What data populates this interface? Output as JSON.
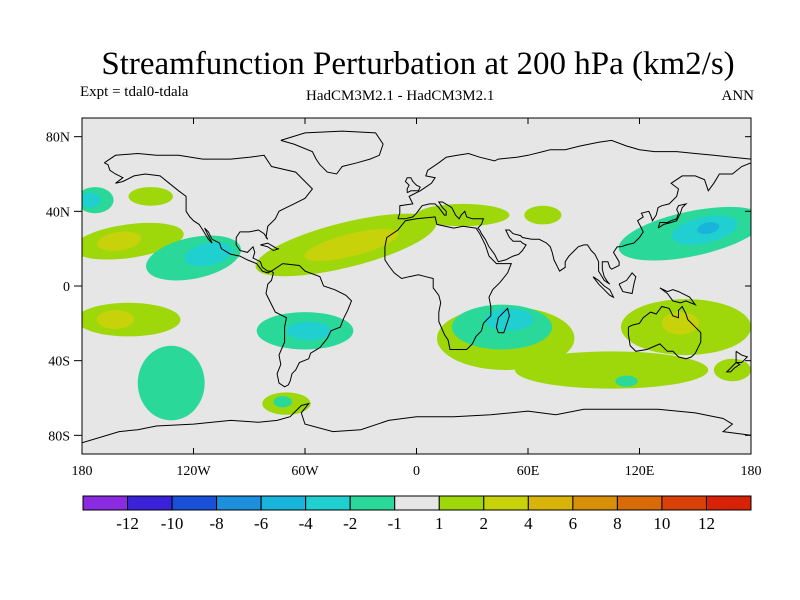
{
  "title": "Streamfunction Perturbation at 200 hPa (km2/s)",
  "subtitle_left": "Expt = tdal0-tdala",
  "subtitle_center": "HadCM3M2.1 - HadCM3M2.1",
  "subtitle_right": "ANN",
  "colors": {
    "background": "#ffffff",
    "map_fill": "#e6e6e6",
    "coastline": "#000000"
  },
  "lat_ticks": [
    {
      "label": "80N",
      "lat": 80
    },
    {
      "label": "40N",
      "lat": 40
    },
    {
      "label": "0",
      "lat": 0
    },
    {
      "label": "40S",
      "lat": -40
    },
    {
      "label": "80S",
      "lat": -80
    }
  ],
  "lon_ticks": [
    {
      "label": "180",
      "lon": -180
    },
    {
      "label": "120W",
      "lon": -120
    },
    {
      "label": "60W",
      "lon": -60
    },
    {
      "label": "0",
      "lon": 0
    },
    {
      "label": "60E",
      "lon": 60
    },
    {
      "label": "120E",
      "lon": 120
    },
    {
      "label": "180",
      "lon": 180
    }
  ],
  "colorbar": {
    "colors": [
      "#8a2be2",
      "#3a22d8",
      "#1a4fd8",
      "#1e8fdc",
      "#18b4dc",
      "#20d0d0",
      "#2ad89a",
      "#e6e6e6",
      "#9ed80a",
      "#c8d20a",
      "#d8b40a",
      "#d8900a",
      "#d86a0a",
      "#d8420a",
      "#d82208"
    ],
    "labels": [
      "-12",
      "-10",
      "-8",
      "-6",
      "-4",
      "-2",
      "-1",
      "1",
      "2",
      "4",
      "6",
      "8",
      "10",
      "12"
    ]
  },
  "fields": [
    {
      "level": 2,
      "color": "#9ed80a",
      "lon": -155,
      "lat": 24,
      "rx": 30,
      "ry": 9,
      "rot": -8
    },
    {
      "level": 4,
      "color": "#c8d20a",
      "lon": -160,
      "lat": 24,
      "rx": 12,
      "ry": 5,
      "rot": -8
    },
    {
      "level": 2,
      "color": "#9ed80a",
      "lon": -155,
      "lat": -18,
      "rx": 28,
      "ry": 9,
      "rot": 0
    },
    {
      "level": 4,
      "color": "#c8d20a",
      "lon": -162,
      "lat": -18,
      "rx": 10,
      "ry": 5,
      "rot": 0
    },
    {
      "level": 2,
      "color": "#9ed80a",
      "lon": -143,
      "lat": 48,
      "rx": 12,
      "ry": 5,
      "rot": 0
    },
    {
      "level": -1,
      "color": "#2ad89a",
      "lon": -173,
      "lat": 46,
      "rx": 10,
      "ry": 7,
      "rot": 0
    },
    {
      "level": -2,
      "color": "#20d0d0",
      "lon": -176,
      "lat": 46,
      "rx": 6,
      "ry": 4,
      "rot": 0
    },
    {
      "level": -1,
      "color": "#2ad89a",
      "lon": -120,
      "lat": 15,
      "rx": 26,
      "ry": 11,
      "rot": -12
    },
    {
      "level": -2,
      "color": "#20d0d0",
      "lon": -112,
      "lat": 17,
      "rx": 13,
      "ry": 6,
      "rot": -12
    },
    {
      "level": -1,
      "color": "#2ad89a",
      "lon": -132,
      "lat": -52,
      "rx": 18,
      "ry": 20,
      "rot": 0
    },
    {
      "level": -1,
      "color": "#2ad89a",
      "lon": -60,
      "lat": -24,
      "rx": 26,
      "ry": 10,
      "rot": 0
    },
    {
      "level": -2,
      "color": "#20d0d0",
      "lon": -58,
      "lat": -24,
      "rx": 12,
      "ry": 5,
      "rot": 0
    },
    {
      "level": 2,
      "color": "#9ed80a",
      "lon": -70,
      "lat": -63,
      "rx": 13,
      "ry": 6,
      "rot": 0
    },
    {
      "level": -1,
      "color": "#2ad89a",
      "lon": -72,
      "lat": -62,
      "rx": 5,
      "ry": 3,
      "rot": 0
    },
    {
      "level": 2,
      "color": "#9ed80a",
      "lon": -38,
      "lat": 22,
      "rx": 50,
      "ry": 12,
      "rot": -14
    },
    {
      "level": 4,
      "color": "#c8d20a",
      "lon": -35,
      "lat": 22,
      "rx": 26,
      "ry": 6,
      "rot": -14
    },
    {
      "level": 2,
      "color": "#9ed80a",
      "lon": 25,
      "lat": 38,
      "rx": 25,
      "ry": 6,
      "rot": 0
    },
    {
      "level": 2,
      "color": "#9ed80a",
      "lon": 68,
      "lat": 38,
      "rx": 10,
      "ry": 5,
      "rot": 0
    },
    {
      "level": 2,
      "color": "#9ed80a",
      "lon": 48,
      "lat": -28,
      "rx": 37,
      "ry": 17,
      "rot": 0
    },
    {
      "level": -1,
      "color": "#2ad89a",
      "lon": 46,
      "lat": -22,
      "rx": 27,
      "ry": 12,
      "rot": 0
    },
    {
      "level": -2,
      "color": "#20d0d0",
      "lon": 50,
      "lat": -18,
      "rx": 13,
      "ry": 6,
      "rot": 0
    },
    {
      "level": 2,
      "color": "#9ed80a",
      "lon": 105,
      "lat": -45,
      "rx": 52,
      "ry": 10,
      "rot": 0
    },
    {
      "level": -1,
      "color": "#2ad89a",
      "lon": 113,
      "lat": -51,
      "rx": 6,
      "ry": 3,
      "rot": 0
    },
    {
      "level": -1,
      "color": "#2ad89a",
      "lon": 148,
      "lat": 28,
      "rx": 40,
      "ry": 12,
      "rot": -12
    },
    {
      "level": -2,
      "color": "#20d0d0",
      "lon": 155,
      "lat": 30,
      "rx": 18,
      "ry": 7,
      "rot": -12
    },
    {
      "level": -4,
      "color": "#18b4dc",
      "lon": 157,
      "lat": 31,
      "rx": 6,
      "ry": 3,
      "rot": -12
    },
    {
      "level": 2,
      "color": "#9ed80a",
      "lon": 145,
      "lat": -22,
      "rx": 35,
      "ry": 15,
      "rot": 0
    },
    {
      "level": 4,
      "color": "#c8d20a",
      "lon": 142,
      "lat": -20,
      "rx": 10,
      "ry": 6,
      "rot": 0
    },
    {
      "level": 2,
      "color": "#9ed80a",
      "lon": 170,
      "lat": -45,
      "rx": 10,
      "ry": 6,
      "rot": 0
    }
  ]
}
